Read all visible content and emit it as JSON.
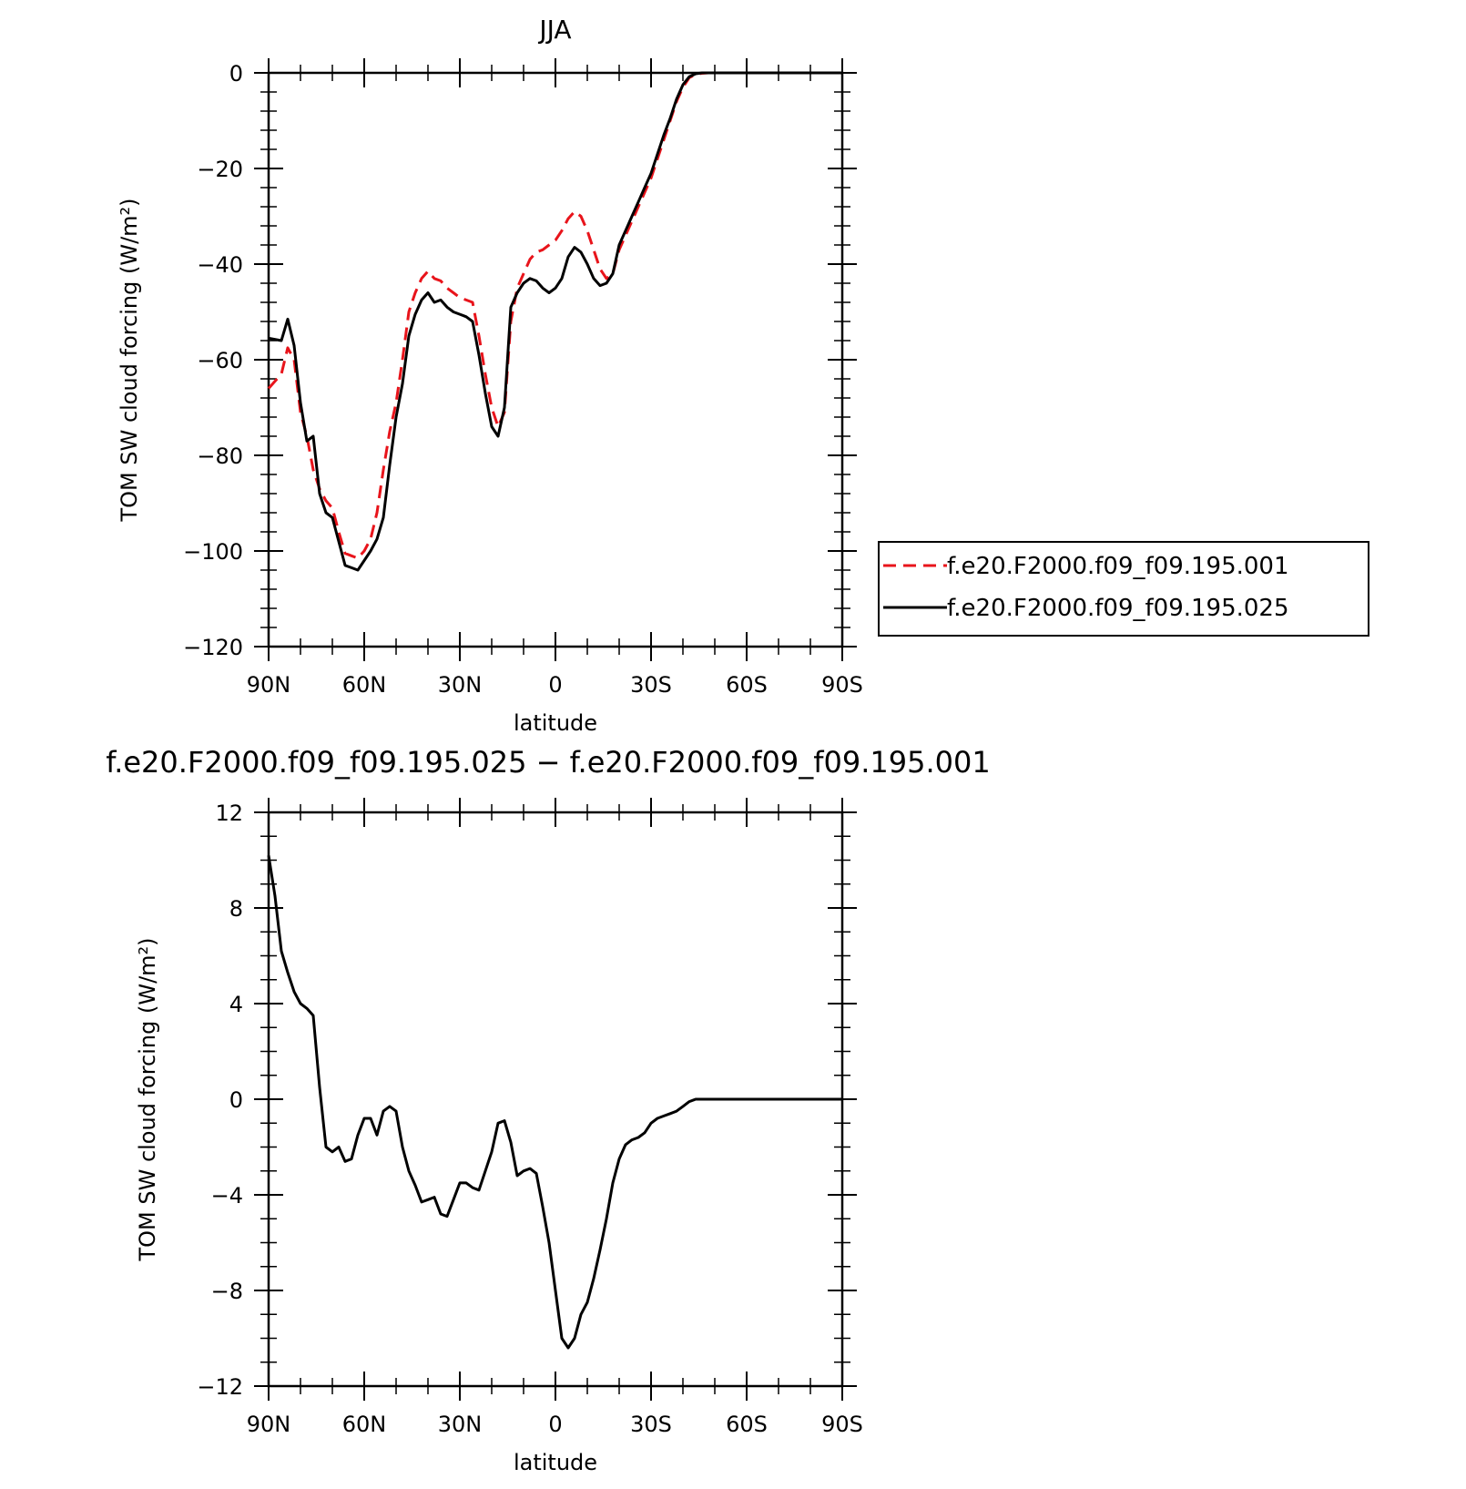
{
  "chart_data": [
    {
      "type": "line",
      "title": "JJA",
      "xlabel": "latitude",
      "ylabel": "TOM SW cloud forcing (W/m²)",
      "ylim": [
        -120,
        0
      ],
      "xlim": [
        90,
        -90
      ],
      "xticks": [
        90,
        60,
        30,
        0,
        -30,
        -60,
        -90
      ],
      "xtick_labels": [
        "90N",
        "60N",
        "30N",
        "0",
        "30S",
        "60S",
        "90S"
      ],
      "yticks": [
        0,
        -20,
        -40,
        -60,
        -80,
        -100,
        -120
      ],
      "ytick_labels": [
        "0",
        "−20",
        "−40",
        "−60",
        "−80",
        "−100",
        "−120"
      ],
      "legend_position": "right",
      "series": [
        {
          "name": "f.e20.F2000.f09_f09.195.001",
          "color": "#e8141b",
          "style": "dashed",
          "x": [
            90,
            86,
            84,
            82,
            80,
            78,
            76,
            74,
            72,
            70,
            68,
            66,
            64,
            62,
            60,
            58,
            56,
            54,
            52,
            50,
            48,
            46,
            44,
            42,
            40,
            38,
            36,
            34,
            32,
            30,
            28,
            26,
            24,
            22,
            20,
            18,
            16,
            14,
            12,
            10,
            8,
            6,
            4,
            2,
            0,
            -2,
            -4,
            -6,
            -8,
            -10,
            -12,
            -14,
            -16,
            -18,
            -20,
            -22,
            -24,
            -26,
            -28,
            -30,
            -32,
            -34,
            -36,
            -38,
            -40,
            -42,
            -44,
            -46,
            -48,
            -50,
            -52,
            -54,
            -56,
            -58,
            -60,
            -62,
            -64,
            -66,
            -68,
            -70,
            -75,
            -80,
            -85,
            -90
          ],
          "y": [
            -66,
            -63,
            -57.5,
            -60,
            -71,
            -76,
            -83,
            -87,
            -89.5,
            -91,
            -96,
            -100.5,
            -101,
            -101.5,
            -100,
            -97.5,
            -92,
            -83,
            -75,
            -69,
            -60,
            -50,
            -46,
            -43,
            -41.5,
            -43,
            -43.5,
            -45,
            -46,
            -47,
            -47.5,
            -48,
            -55,
            -63,
            -70,
            -74,
            -71,
            -52,
            -45,
            -42,
            -39,
            -37.5,
            -37,
            -36,
            -35,
            -33,
            -30.5,
            -29,
            -30,
            -33,
            -37,
            -41,
            -43,
            -42,
            -37,
            -34,
            -31,
            -28,
            -25,
            -22,
            -18,
            -14,
            -10,
            -6,
            -3,
            -1,
            -0.3,
            -0.1,
            0,
            0,
            0,
            0,
            0,
            0,
            0,
            0,
            0,
            0,
            0,
            0,
            0,
            0,
            0,
            0
          ]
        },
        {
          "name": "f.e20.F2000.f09_f09.195.025",
          "color": "#000000",
          "style": "solid",
          "x": [
            90,
            86,
            84,
            82,
            80,
            78,
            76,
            74,
            72,
            70,
            68,
            66,
            64,
            62,
            60,
            58,
            56,
            54,
            52,
            50,
            48,
            46,
            44,
            42,
            40,
            38,
            36,
            34,
            32,
            30,
            28,
            26,
            24,
            22,
            20,
            18,
            16,
            14,
            12,
            10,
            8,
            6,
            4,
            2,
            0,
            -2,
            -4,
            -6,
            -8,
            -10,
            -12,
            -14,
            -16,
            -18,
            -20,
            -22,
            -24,
            -26,
            -28,
            -30,
            -32,
            -34,
            -36,
            -38,
            -40,
            -42,
            -44,
            -46,
            -48,
            -50,
            -52,
            -54,
            -56,
            -58,
            -60,
            -62,
            -64,
            -66,
            -68,
            -70,
            -75,
            -80,
            -85,
            -90
          ],
          "y": [
            -55.5,
            -56,
            -51.5,
            -57,
            -69,
            -77,
            -76,
            -88,
            -92,
            -93,
            -98,
            -103,
            -103.5,
            -104,
            -102,
            -100,
            -97.5,
            -93,
            -82,
            -72,
            -65,
            -55,
            -50.5,
            -47.5,
            -46,
            -48,
            -47.5,
            -49,
            -50,
            -50.5,
            -51,
            -52,
            -59,
            -67,
            -74,
            -76,
            -70,
            -49,
            -46,
            -44,
            -43,
            -43.5,
            -45,
            -46,
            -45,
            -43,
            -38.5,
            -36.5,
            -37.5,
            -40,
            -43,
            -44.5,
            -44,
            -42,
            -36,
            -33,
            -30,
            -27,
            -24,
            -21,
            -17,
            -13,
            -9.5,
            -5.5,
            -2.5,
            -0.8,
            -0.2,
            0,
            0,
            0,
            0,
            0,
            0,
            0,
            0,
            0,
            0,
            0,
            0,
            0,
            0,
            0,
            0,
            0
          ]
        }
      ]
    },
    {
      "type": "line",
      "title": "f.e20.F2000.f09_f09.195.025 − f.e20.F2000.f09_f09.195.001",
      "xlabel": "latitude",
      "ylabel": "TOM SW cloud forcing (W/m²)",
      "ylim": [
        -12,
        12
      ],
      "xlim": [
        90,
        -90
      ],
      "xticks": [
        90,
        60,
        30,
        0,
        -30,
        -60,
        -90
      ],
      "xtick_labels": [
        "90N",
        "60N",
        "30N",
        "0",
        "30S",
        "60S",
        "90S"
      ],
      "yticks": [
        12,
        8,
        4,
        0,
        -4,
        -8,
        -12
      ],
      "ytick_labels": [
        "12",
        "8",
        "4",
        "0",
        "−4",
        "−8",
        "−12"
      ],
      "series": [
        {
          "color": "#000000",
          "style": "solid",
          "x": [
            90,
            88,
            86,
            84,
            82,
            80,
            78,
            76,
            74,
            72,
            70,
            68,
            66,
            64,
            62,
            60,
            58,
            56,
            54,
            52,
            50,
            48,
            46,
            44,
            42,
            40,
            38,
            36,
            34,
            32,
            30,
            28,
            26,
            24,
            22,
            20,
            18,
            16,
            14,
            12,
            10,
            8,
            6,
            4,
            2,
            0,
            -2,
            -4,
            -6,
            -8,
            -10,
            -12,
            -14,
            -16,
            -18,
            -20,
            -22,
            -24,
            -26,
            -28,
            -30,
            -32,
            -34,
            -36,
            -38,
            -40,
            -42,
            -44,
            -46,
            -48,
            -50,
            -52,
            -54,
            -56,
            -58,
            -60,
            -62,
            -64,
            -66,
            -70,
            -75,
            -80,
            -85,
            -90
          ],
          "y": [
            10.2,
            8.5,
            6.2,
            5.3,
            4.5,
            4.0,
            3.8,
            3.5,
            0.5,
            -2.0,
            -2.2,
            -2.0,
            -2.6,
            -2.5,
            -1.5,
            -0.8,
            -0.8,
            -1.5,
            -0.5,
            -0.3,
            -0.5,
            -2.0,
            -3.0,
            -3.6,
            -4.3,
            -4.2,
            -4.1,
            -4.8,
            -4.9,
            -4.2,
            -3.5,
            -3.5,
            -3.7,
            -3.8,
            -3.0,
            -2.2,
            -1.0,
            -0.9,
            -1.8,
            -3.2,
            -3.0,
            -2.9,
            -3.1,
            -4.5,
            -6.0,
            -8.0,
            -10.0,
            -10.4,
            -10.0,
            -9.0,
            -8.5,
            -7.5,
            -6.3,
            -5.0,
            -3.5,
            -2.5,
            -1.9,
            -1.7,
            -1.6,
            -1.4,
            -1.0,
            -0.8,
            -0.7,
            -0.6,
            -0.5,
            -0.3,
            -0.1,
            0,
            0,
            0,
            0,
            0,
            0,
            0,
            0,
            0,
            0,
            0,
            0,
            0,
            0,
            0,
            0,
            0
          ]
        }
      ]
    }
  ]
}
